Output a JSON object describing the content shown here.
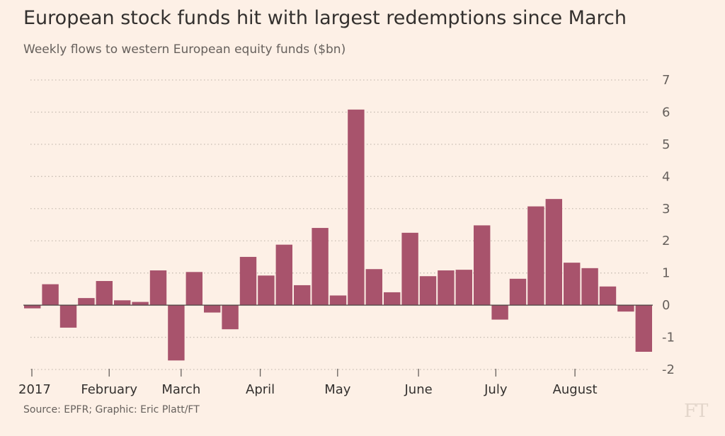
{
  "title": "European stock funds hit with largest redemptions since March",
  "subtitle": "Weekly flows to western European equity funds ($bn)",
  "source": "Source: EPFR; Graphic: Eric Platt/FT",
  "logo": "FT",
  "colors": {
    "bar": "#a8536c",
    "background": "#fdf0e6",
    "grid": "#c8bdb3",
    "axis": "#66605c"
  },
  "chart_data": {
    "type": "bar",
    "title": "European stock funds hit with largest redemptions since March",
    "subtitle": "Weekly flows to western European equity funds ($bn)",
    "ylim": [
      -2,
      7
    ],
    "yticks": [
      -2,
      -1,
      0,
      1,
      2,
      3,
      4,
      5,
      6,
      7
    ],
    "y_axis_position": "right",
    "grid": true,
    "x_labels": [
      {
        "label": "2017",
        "week": 0
      },
      {
        "label": "February",
        "week": 4.3
      },
      {
        "label": "March",
        "week": 8.3
      },
      {
        "label": "April",
        "week": 12.7
      },
      {
        "label": "May",
        "week": 17.0
      },
      {
        "label": "June",
        "week": 21.5
      },
      {
        "label": "July",
        "week": 25.8
      },
      {
        "label": "August",
        "week": 30.2
      }
    ],
    "values": [
      -0.1,
      0.65,
      -0.7,
      0.22,
      0.75,
      0.15,
      0.1,
      1.08,
      -1.72,
      1.03,
      -0.23,
      -0.75,
      1.5,
      0.92,
      1.88,
      0.62,
      2.4,
      0.3,
      6.08,
      1.12,
      0.4,
      2.25,
      0.9,
      1.08,
      1.1,
      2.48,
      -0.45,
      0.82,
      3.07,
      3.3,
      1.32,
      1.15,
      0.58,
      -0.2,
      -1.45
    ]
  }
}
